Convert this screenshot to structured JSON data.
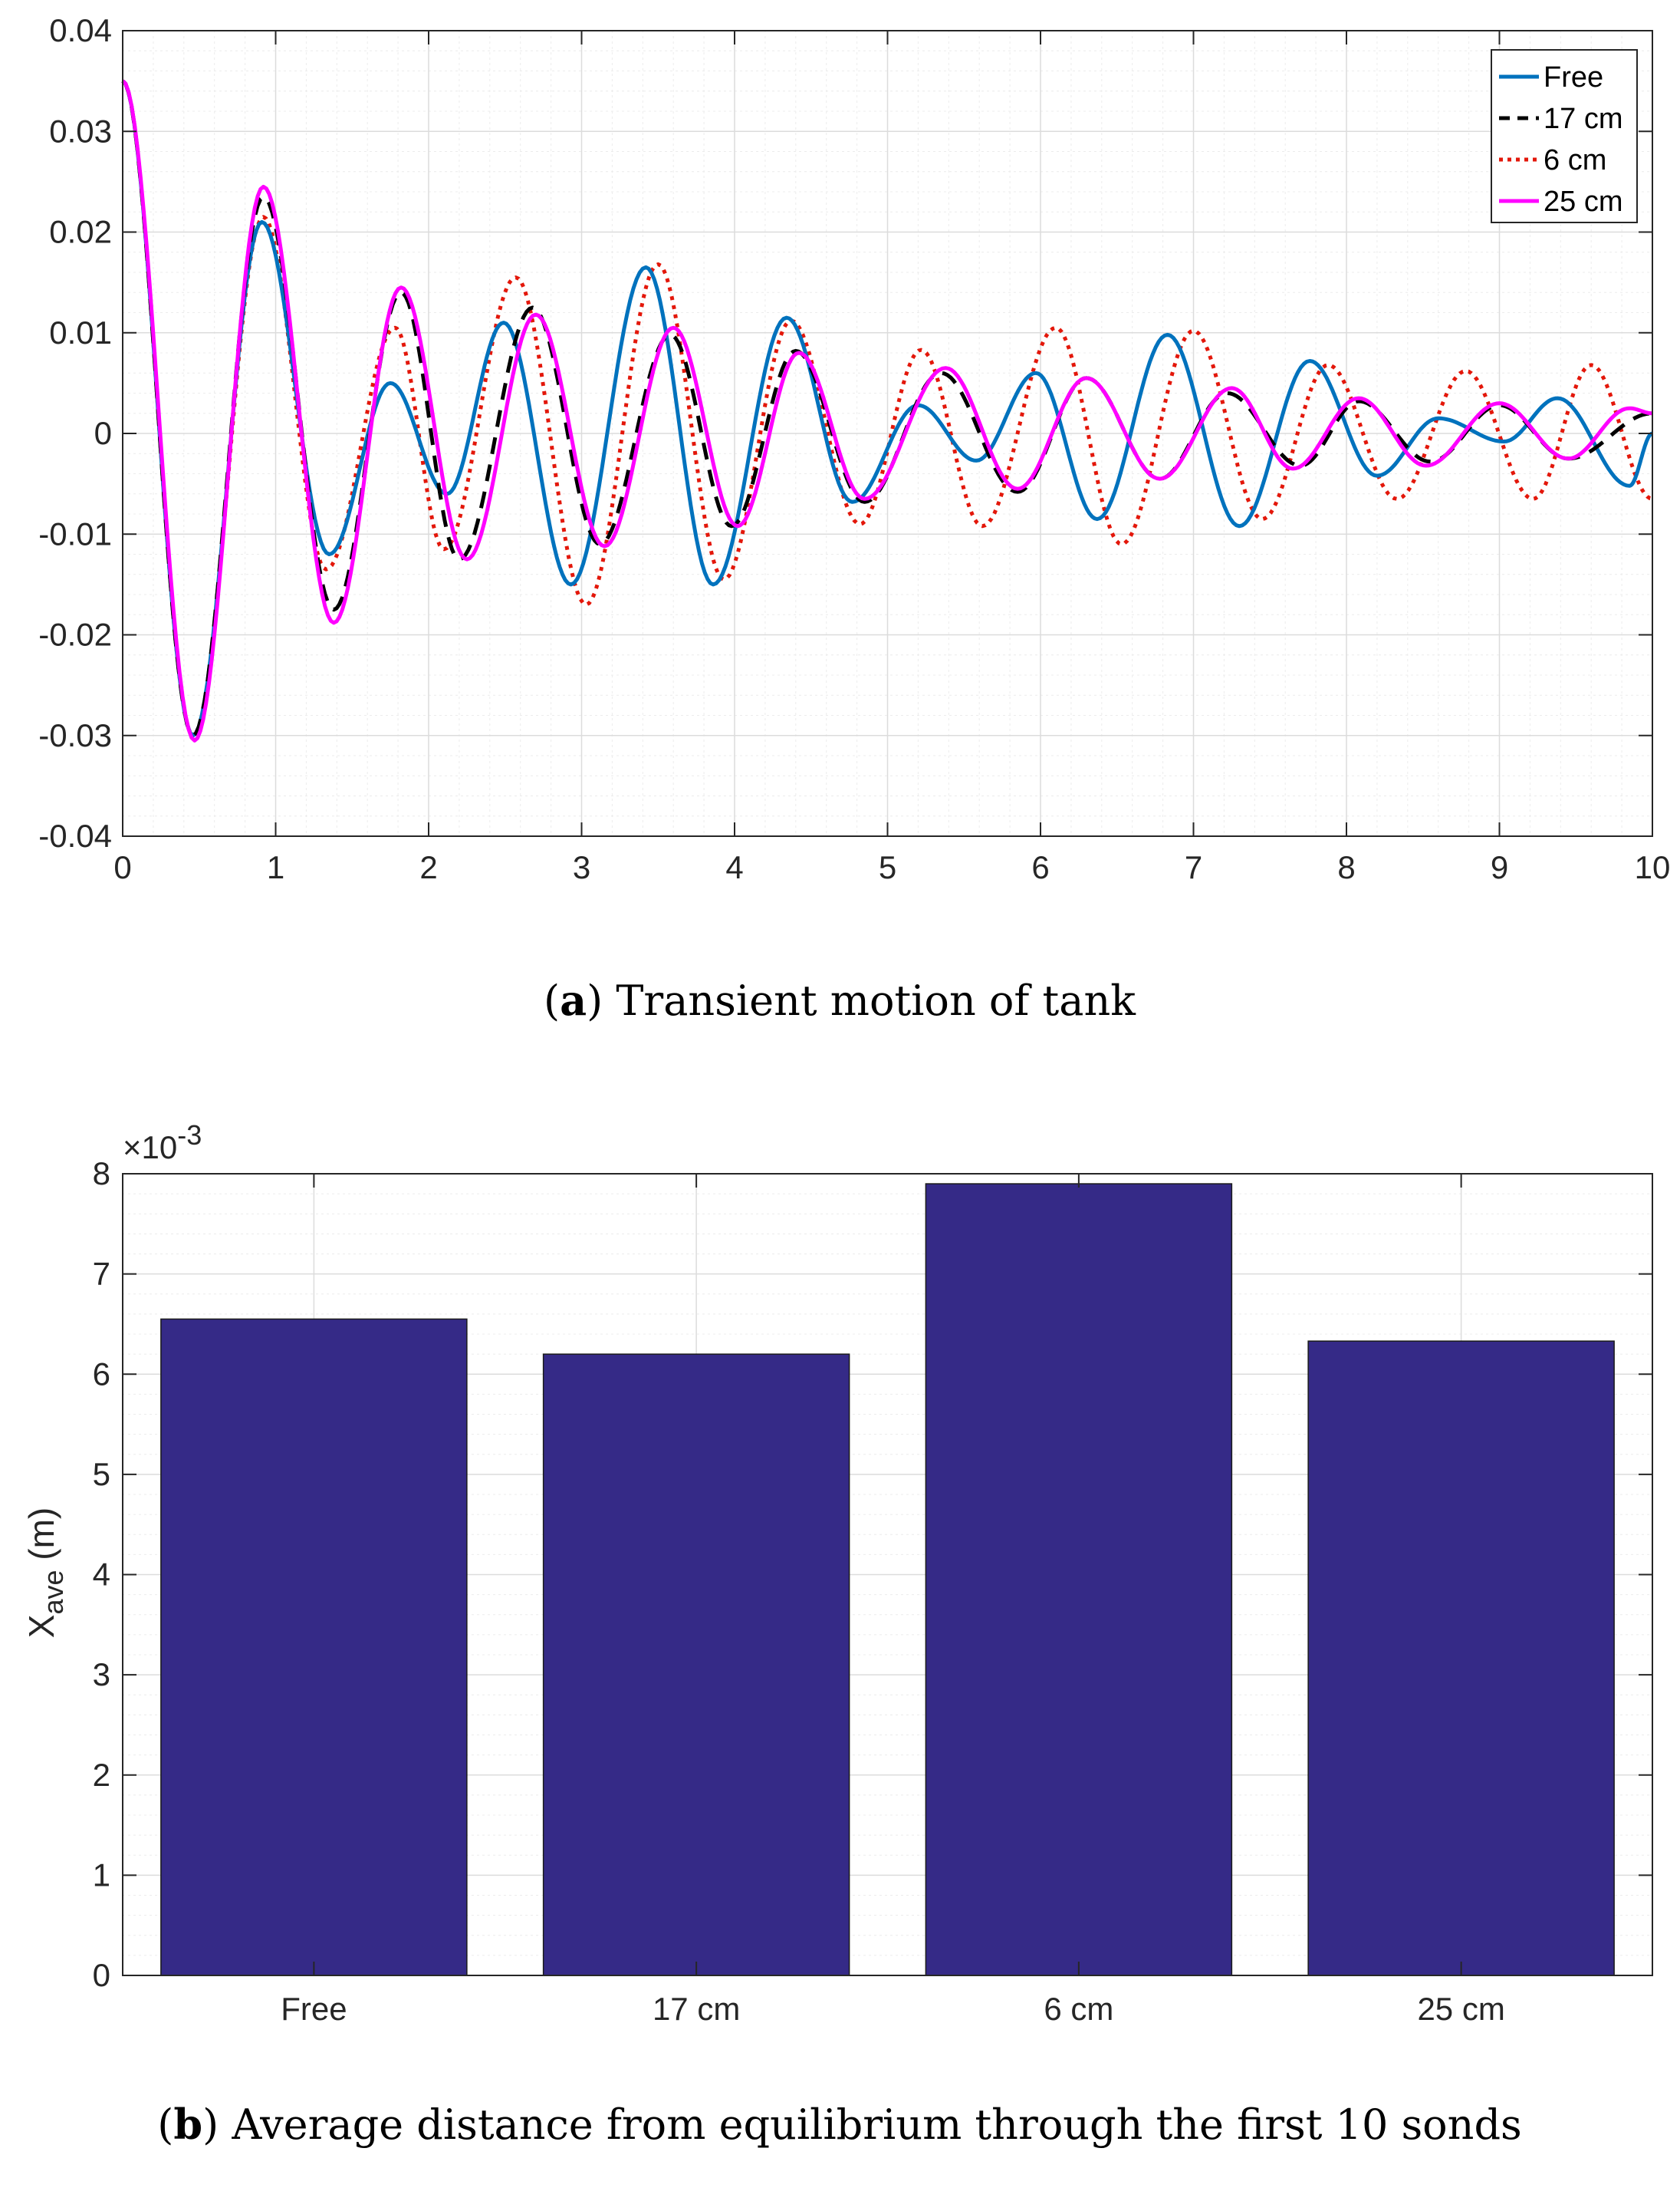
{
  "chart_data": [
    {
      "type": "line",
      "panel": "a",
      "caption_label": "a",
      "caption_text": "Transient motion of tank",
      "xlim": [
        0,
        10
      ],
      "ylim": [
        -0.04,
        0.04
      ],
      "xticks": [
        "0",
        "1",
        "2",
        "3",
        "4",
        "5",
        "6",
        "7",
        "8",
        "9",
        "10"
      ],
      "yticks": [
        "0.04",
        "0.03",
        "0.02",
        "0.01",
        "0",
        "-0.01",
        "-0.02",
        "-0.03",
        "-0.04"
      ],
      "xlabel": "",
      "ylabel": "",
      "grid": true,
      "legend_position": "top-right",
      "series": [
        {
          "name": "Free",
          "color": "#0072BD",
          "style": "solid",
          "x": [
            0,
            0.46,
            0.91,
            1.35,
            1.75,
            2.12,
            2.49,
            2.93,
            3.42,
            3.86,
            4.34,
            4.77,
            5.2,
            5.58,
            5.97,
            6.37,
            6.83,
            7.3,
            7.76,
            8.2,
            8.6,
            9.03,
            9.38,
            9.85,
            10
          ],
          "y": [
            0.035,
            -0.03,
            0.021,
            -0.012,
            0.005,
            -0.006,
            0.011,
            -0.015,
            0.0165,
            -0.015,
            0.0115,
            -0.0068,
            0.0028,
            -0.0027,
            0.006,
            -0.0085,
            0.0098,
            -0.0092,
            0.0072,
            -0.0042,
            0.0015,
            -0.0008,
            0.0035,
            -0.0052,
            0
          ]
        },
        {
          "name": "17 cm",
          "color": "#000000",
          "style": "dashed",
          "x": [
            0,
            0.46,
            0.92,
            1.38,
            1.82,
            2.2,
            2.68,
            3.12,
            3.58,
            3.98,
            4.4,
            4.85,
            5.35,
            5.85,
            6.3,
            6.78,
            7.22,
            7.7,
            8.08,
            8.55,
            9.0,
            9.45,
            10
          ],
          "y": [
            0.035,
            -0.03,
            0.0235,
            -0.0175,
            0.014,
            -0.0125,
            0.0125,
            -0.011,
            0.0098,
            -0.0092,
            0.0082,
            -0.0068,
            0.006,
            -0.0058,
            0.0055,
            -0.0045,
            0.004,
            -0.0032,
            0.0032,
            -0.0028,
            0.0028,
            -0.0025,
            0.002
          ]
        },
        {
          "name": "6 cm",
          "color": "#E3170A",
          "style": "dotted",
          "x": [
            0,
            0.46,
            0.92,
            1.33,
            1.78,
            2.1,
            2.57,
            3.03,
            3.5,
            3.93,
            4.37,
            4.82,
            5.22,
            5.62,
            6.1,
            6.53,
            7.0,
            7.45,
            7.88,
            8.33,
            8.78,
            9.22,
            9.6,
            10
          ],
          "y": [
            0.035,
            -0.03,
            0.0215,
            -0.0135,
            0.0105,
            -0.0115,
            0.0155,
            -0.017,
            0.0168,
            -0.0145,
            0.0112,
            -0.009,
            0.0083,
            -0.0092,
            0.0105,
            -0.011,
            0.0102,
            -0.0085,
            0.0068,
            -0.0065,
            0.0062,
            -0.0065,
            0.0068,
            -0.0065
          ]
        },
        {
          "name": "25 cm",
          "color": "#FF00FF",
          "style": "solid",
          "x": [
            0,
            0.47,
            0.92,
            1.38,
            1.82,
            2.25,
            2.7,
            3.15,
            3.6,
            4.02,
            4.42,
            4.85,
            5.38,
            5.85,
            6.3,
            6.78,
            7.25,
            7.65,
            8.08,
            8.52,
            9.0,
            9.45,
            9.85,
            10
          ],
          "y": [
            0.035,
            -0.0305,
            0.0245,
            -0.0188,
            0.0145,
            -0.0125,
            0.0118,
            -0.0112,
            0.0105,
            -0.0092,
            0.008,
            -0.0065,
            0.0065,
            -0.0055,
            0.0055,
            -0.0045,
            0.0045,
            -0.0035,
            0.0035,
            -0.0032,
            0.003,
            -0.0025,
            0.0025,
            0.002
          ]
        }
      ]
    },
    {
      "type": "bar",
      "panel": "b",
      "caption_label": "b",
      "caption_text": "Average distance from equilibrium through the first 10 sonds",
      "categories": [
        "Free",
        "17 cm",
        "6 cm",
        "25 cm"
      ],
      "values": [
        6.55,
        6.2,
        7.9,
        6.33
      ],
      "scale_label": "×10",
      "scale_exponent": "-3",
      "ylabel_main": "X",
      "ylabel_sub": "ave",
      "ylabel_unit": " (m)",
      "ylim": [
        0,
        8
      ],
      "yticks": [
        "0",
        "1",
        "2",
        "3",
        "4",
        "5",
        "6",
        "7",
        "8"
      ],
      "bar_color": "#352A87",
      "grid": true
    }
  ]
}
